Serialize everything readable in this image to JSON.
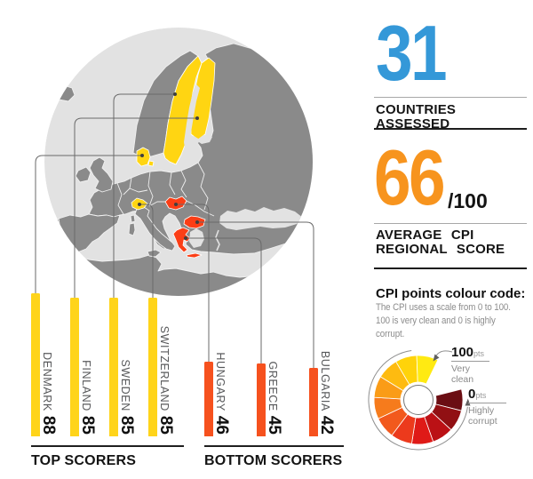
{
  "colors": {
    "stat_blue": "#3498D8",
    "stat_orange": "#F7941E",
    "bar_yellow": "#FFD41A",
    "bar_red": "#F6511E",
    "map_yellow": "#FFD512",
    "map_red": "#FB3E16",
    "land_gray": "#8A8A8A",
    "sea_gray": "#E2E2E2"
  },
  "stats": {
    "countries": {
      "value": "31",
      "label": "COUNTRIES ASSESSED"
    },
    "average": {
      "value": "66",
      "suffix": "/100",
      "label_line1": "AVERAGE CPI",
      "label_line2": "REGIONAL SCORE"
    }
  },
  "legend": {
    "title": "CPI points colour code:",
    "desc_line1": "The CPI uses a scale from 0 to 100.",
    "desc_line2": "100 is very clean and 0 is highly corrupt.",
    "max": {
      "value": "100",
      "unit": "pts",
      "caption_line1": "Very",
      "caption_line2": "clean"
    },
    "min": {
      "value": "0",
      "unit": "pts",
      "caption_line1": "Highly",
      "caption_line2": "corrupt"
    },
    "wheel_colors": [
      "#6B0E13",
      "#911013",
      "#BB1115",
      "#DF1A17",
      "#EC3A1C",
      "#F2591D",
      "#F67B1C",
      "#FA9C17",
      "#FEBB10",
      "#FFD30A",
      "#FFEA12"
    ]
  },
  "map": {
    "highlighted_yellow": [
      "Sweden",
      "Finland",
      "Denmark",
      "Switzerland"
    ],
    "highlighted_red": [
      "Hungary",
      "Greece",
      "Bulgaria"
    ]
  },
  "chart_data": [
    {
      "type": "bar",
      "title": "TOP SCORERS",
      "categories": [
        "DENMARK",
        "FINLAND",
        "SWEDEN",
        "SWITZERLAND"
      ],
      "values": [
        88,
        85,
        85,
        85
      ],
      "bar_color": "#FFD41A",
      "ylim": [
        0,
        100
      ],
      "value_labels": true
    },
    {
      "type": "bar",
      "title": "BOTTOM SCORERS",
      "categories": [
        "HUNGARY",
        "GREECE",
        "BULGARIA"
      ],
      "values": [
        46,
        45,
        42
      ],
      "bar_color": "#F6511E",
      "ylim": [
        0,
        100
      ],
      "value_labels": true
    },
    {
      "type": "pie",
      "title": "CPI points colour code",
      "scale_min": 0,
      "scale_max": 100,
      "segment_colors": [
        "#6B0E13",
        "#911013",
        "#BB1115",
        "#DF1A17",
        "#EC3A1C",
        "#F2591D",
        "#F67B1C",
        "#FA9C17",
        "#FEBB10",
        "#FFD30A",
        "#FFEA12"
      ],
      "annotations": [
        "100pts Very clean",
        "0pts Highly corrupt"
      ]
    }
  ]
}
